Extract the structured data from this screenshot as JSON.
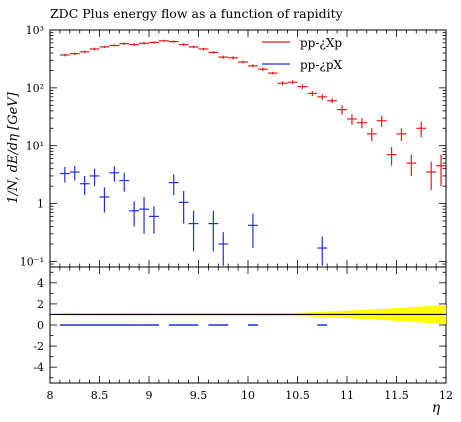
{
  "chart_data": {
    "title": "ZDC Plus energy flow as a function of rapidity",
    "type": "scatter",
    "xlabel": "η",
    "ylabel": "1/N, dE/dη [GeV]",
    "xlim": [
      8,
      12
    ],
    "ylim_main": [
      0.08,
      1000
    ],
    "yscale_main": "log",
    "ylim_ratio": [
      -5.5,
      5.5
    ],
    "x_tick_labels": [
      "8",
      "8.5",
      "9",
      "9.5",
      "10",
      "10.5",
      "11",
      "11.5",
      "12"
    ],
    "y_tick_labels_main": [
      "10⁻¹",
      "1",
      "10¹",
      "10²",
      "10³"
    ],
    "y_tick_labels_ratio": [
      "-4",
      "-2",
      "0",
      "2",
      "4"
    ],
    "legend_position": "top-right",
    "legend": [
      "pp-¿Xp",
      "pp-¿pX"
    ],
    "series": [
      {
        "name": "pp-¿Xp",
        "color": "#e31a1c",
        "x": [
          8.15,
          8.25,
          8.35,
          8.45,
          8.55,
          8.65,
          8.75,
          8.85,
          8.95,
          9.05,
          9.15,
          9.25,
          9.35,
          9.45,
          9.55,
          9.65,
          9.75,
          9.85,
          9.95,
          10.05,
          10.15,
          10.25,
          10.35,
          10.45,
          10.55,
          10.65,
          10.75,
          10.85,
          10.95,
          11.05,
          11.15,
          11.25,
          11.35,
          11.45,
          11.55,
          11.65,
          11.75,
          11.85,
          11.95
        ],
        "y": [
          370,
          390,
          420,
          470,
          510,
          540,
          580,
          560,
          590,
          610,
          650,
          630,
          560,
          510,
          470,
          410,
          340,
          330,
          280,
          240,
          210,
          180,
          120,
          125,
          105,
          80,
          70,
          60,
          42,
          29,
          25,
          16,
          27,
          7,
          16,
          5,
          20,
          3.5,
          4.5
        ],
        "yerr": [
          20,
          20,
          20,
          25,
          25,
          25,
          30,
          30,
          30,
          30,
          30,
          30,
          30,
          25,
          25,
          20,
          20,
          20,
          15,
          15,
          15,
          10,
          10,
          10,
          10,
          8,
          8,
          6,
          8,
          6,
          5,
          4,
          6,
          2.5,
          4,
          2,
          6,
          1.8,
          2.5
        ]
      },
      {
        "name": "pp-¿pX",
        "color": "#2030d0",
        "x": [
          8.15,
          8.25,
          8.35,
          8.45,
          8.55,
          8.65,
          8.75,
          8.85,
          8.95,
          9.05,
          9.25,
          9.35,
          9.45,
          9.65,
          9.75,
          10.05,
          10.75
        ],
        "y": [
          3.3,
          3.5,
          2.2,
          3.0,
          1.3,
          3.4,
          2.5,
          0.75,
          0.8,
          0.6,
          2.3,
          1.05,
          0.45,
          0.45,
          0.2,
          0.42,
          0.17
        ],
        "yerr": [
          1.0,
          1.0,
          0.8,
          1.0,
          0.6,
          1.0,
          0.9,
          0.35,
          0.5,
          0.3,
          0.9,
          0.6,
          0.3,
          0.3,
          0.12,
          0.25,
          0.1
        ]
      }
    ],
    "ratio_panel": {
      "reference_line_y": 1,
      "band_color": "#ffff00",
      "band_x": [
        8.1,
        10.5,
        11.0,
        11.5,
        12.0
      ],
      "band_halfwidth": [
        0.1,
        0.15,
        0.35,
        0.6,
        0.9
      ],
      "blue_segments_x": [
        [
          8.1,
          8.9
        ],
        [
          8.9,
          9.1
        ],
        [
          9.2,
          9.5
        ],
        [
          9.6,
          9.8
        ],
        [
          10.0,
          10.1
        ],
        [
          10.7,
          10.8
        ]
      ],
      "blue_segments_y": 0
    }
  }
}
